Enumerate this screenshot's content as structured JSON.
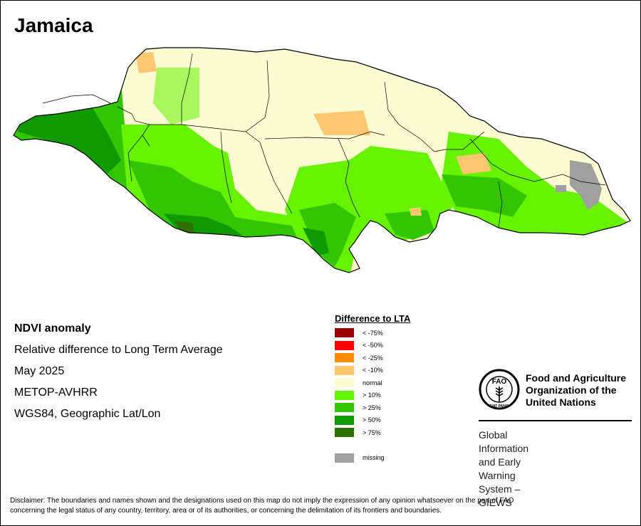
{
  "title": "Jamaica",
  "info": {
    "heading": "NDVI anomaly",
    "line1": "Relative difference to Long Term Average",
    "line2": "May 2025",
    "line3": "METOP-AVHRR",
    "line4": "WGS84, Geographic Lat/Lon"
  },
  "legend": {
    "title": "Difference to LTA",
    "items": [
      {
        "label": "< -75%",
        "color": "#9b0000"
      },
      {
        "label": "< -50%",
        "color": "#ff0000"
      },
      {
        "label": "< -25%",
        "color": "#ff8c00"
      },
      {
        "label": "< -10%",
        "color": "#ffc870"
      },
      {
        "label": "normal",
        "color": "#fdfbd2"
      },
      {
        "label": "> 10%",
        "color": "#66f200"
      },
      {
        "label": "> 25%",
        "color": "#33c600"
      },
      {
        "label": "> 50%",
        "color": "#119900"
      },
      {
        "label": "> 75%",
        "color": "#2e7000"
      }
    ],
    "missing": {
      "label": "missing",
      "color": "#a0a0a0"
    }
  },
  "fao": {
    "name_line1": "Food and Agriculture",
    "name_line2": "Organization of the",
    "name_line3": "United Nations",
    "logo_letters": "FAO",
    "logo_motto": "FIAT PANIS",
    "giews_line1": "Global Information and Early",
    "giews_line2": "Warning System – GIEWS"
  },
  "disclaimer": {
    "line1": "Disclaimer: The boundaries and names shown and the designations used on this map do not imply the expression of any opinion whatsoever on the part of FAO",
    "line2": "concerning the legal status of any country, territory, area or of its authorities, or concerning the delimitation of its frontiers and boundaries."
  },
  "map": {
    "normal_color": "#fdfbd2",
    "green_light": "#66f200",
    "green_mid": "#33c600",
    "green_dark": "#119900",
    "green_darkest": "#2e7000",
    "orange_light": "#ffc870",
    "missing_color": "#a0a0a0",
    "border_color": "#000000"
  }
}
